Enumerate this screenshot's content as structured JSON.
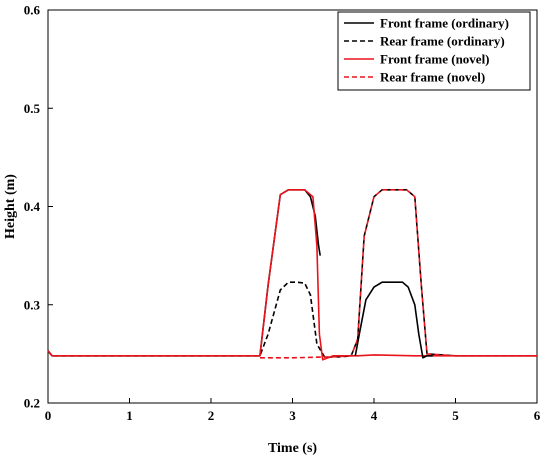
{
  "chart_data": {
    "type": "line",
    "title": "",
    "xlabel": "Time (s)",
    "ylabel": "Height (m)",
    "xlim": [
      0,
      6
    ],
    "ylim": [
      0.2,
      0.6
    ],
    "xticks": [
      0,
      1,
      2,
      3,
      4,
      5,
      6
    ],
    "yticks": [
      0.2,
      0.3,
      0.4,
      0.5,
      0.6
    ],
    "grid": false,
    "legend_position": "top-right",
    "series": [
      {
        "name": "Front frame (ordinary)",
        "color": "#000000",
        "dash": "solid",
        "x": [
          0,
          0.05,
          0.5,
          1,
          1.5,
          2,
          2.5,
          2.6,
          2.7,
          2.85,
          2.95,
          3.05,
          3.15,
          3.22,
          3.28,
          3.32,
          3.34
        ],
        "y": [
          0.253,
          0.248,
          0.248,
          0.248,
          0.248,
          0.248,
          0.248,
          0.248,
          0.32,
          0.412,
          0.417,
          0.417,
          0.417,
          0.41,
          0.39,
          0.36,
          0.35
        ]
      },
      {
        "name": "Rear frame (ordinary)",
        "color": "#000000",
        "dash": "dashed",
        "x": [
          0,
          0.05,
          0.5,
          1,
          1.5,
          2,
          2.5,
          2.6,
          2.7,
          2.85,
          2.95,
          3.05,
          3.15,
          3.22,
          3.3,
          3.4,
          3.5,
          3.6,
          3.72,
          3.8,
          3.88,
          4.0,
          4.1,
          4.3,
          4.4,
          4.5,
          4.58,
          4.65,
          5,
          5.5,
          6
        ],
        "y": [
          0.253,
          0.248,
          0.248,
          0.248,
          0.248,
          0.248,
          0.248,
          0.248,
          0.27,
          0.315,
          0.323,
          0.323,
          0.322,
          0.31,
          0.26,
          0.246,
          0.247,
          0.247,
          0.248,
          0.265,
          0.37,
          0.41,
          0.417,
          0.417,
          0.417,
          0.41,
          0.32,
          0.25,
          0.248,
          0.248,
          0.248
        ]
      },
      {
        "name": "Front frame (novel)",
        "color": "#e8141c",
        "dash": "solid",
        "x": [
          0,
          0.05,
          0.5,
          1,
          1.5,
          2,
          2.5,
          2.6,
          2.7,
          2.85,
          2.95,
          3.05,
          3.15,
          3.25,
          3.3,
          3.33,
          3.37,
          3.5,
          3.6,
          3.8,
          4.0,
          4.5,
          5,
          5.5,
          6
        ],
        "y": [
          0.253,
          0.248,
          0.248,
          0.248,
          0.248,
          0.248,
          0.248,
          0.248,
          0.32,
          0.412,
          0.417,
          0.417,
          0.417,
          0.41,
          0.36,
          0.27,
          0.244,
          0.248,
          0.248,
          0.248,
          0.249,
          0.248,
          0.248,
          0.248,
          0.248
        ]
      },
      {
        "name": "Rear frame (novel)",
        "color": "#e8141c",
        "dash": "dashed",
        "x": [
          2.6,
          3.0,
          3.5,
          3.72,
          3.8,
          3.88,
          4.0,
          4.1,
          4.3,
          4.4,
          4.5,
          4.58,
          4.65,
          5,
          5.5,
          6
        ],
        "y": [
          0.246,
          0.246,
          0.247,
          0.248,
          0.265,
          0.37,
          0.41,
          0.417,
          0.417,
          0.417,
          0.41,
          0.32,
          0.25,
          0.248,
          0.248,
          0.248
        ]
      },
      {
        "name": "",
        "color": "#000000",
        "dash": "solid",
        "x": [
          3.77,
          3.82,
          3.9,
          4.0,
          4.1,
          4.25,
          4.35,
          4.42,
          4.5,
          4.55,
          4.6,
          4.65,
          4.72
        ],
        "y": [
          0.248,
          0.27,
          0.305,
          0.318,
          0.323,
          0.323,
          0.323,
          0.318,
          0.3,
          0.27,
          0.246,
          0.248,
          0.248
        ]
      }
    ]
  }
}
